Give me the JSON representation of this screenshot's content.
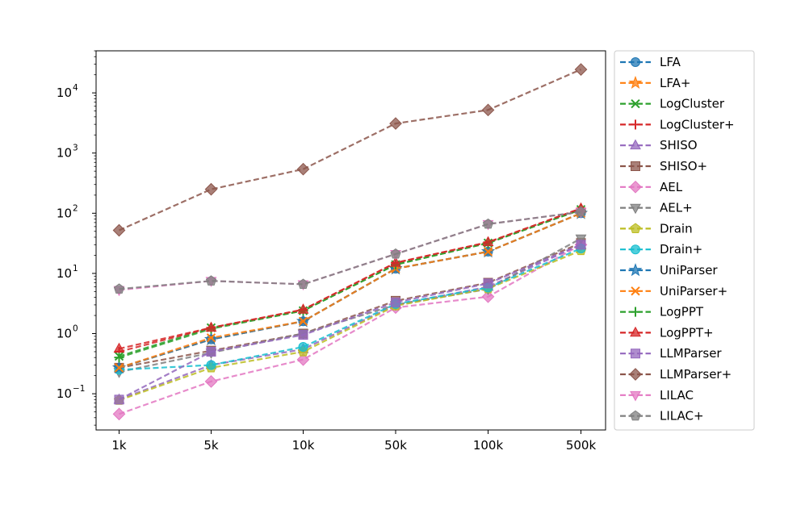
{
  "chart_data": {
    "type": "line",
    "title": "",
    "xlabel": "",
    "ylabel": "",
    "y_scale": "log",
    "ylim": [
      0.025,
      50000
    ],
    "grid": false,
    "legend_position": "outside-right",
    "categories": [
      "1k",
      "5k",
      "10k",
      "50k",
      "100k",
      "500k"
    ],
    "y_tick_labels": [
      "10",
      "10",
      "10",
      "10",
      "10",
      "10"
    ],
    "y_tick_exponents": [
      "−1",
      "0",
      "1",
      "2",
      "3",
      "4"
    ],
    "y_tick_values": [
      0.1,
      1,
      10,
      100,
      1000,
      10000
    ],
    "series": [
      {
        "name": "LFA",
        "color": "#1f77b4",
        "marker": "circle",
        "values": [
          0.27,
          0.8,
          1.6,
          12,
          23,
          100
        ]
      },
      {
        "name": "LFA+",
        "color": "#ff7f0e",
        "marker": "star",
        "values": [
          0.27,
          0.8,
          1.6,
          12,
          23,
          100
        ]
      },
      {
        "name": "LogCluster",
        "color": "#2ca02c",
        "marker": "x",
        "values": [
          0.42,
          1.25,
          2.4,
          14,
          32,
          115
        ]
      },
      {
        "name": "LogCluster+",
        "color": "#d62728",
        "marker": "plus",
        "values": [
          0.5,
          1.25,
          2.5,
          15,
          33,
          120
        ]
      },
      {
        "name": "SHISO",
        "color": "#9467bd",
        "marker": "triangle-up",
        "values": [
          0.08,
          0.3,
          0.55,
          3.0,
          6.0,
          30
        ]
      },
      {
        "name": "SHISO+",
        "color": "#8c564b",
        "marker": "square",
        "values": [
          0.27,
          0.52,
          1.0,
          3.5,
          7.0,
          32
        ]
      },
      {
        "name": "AEL",
        "color": "#e377c2",
        "marker": "diamond",
        "values": [
          0.046,
          0.16,
          0.37,
          2.7,
          4.1,
          30
        ]
      },
      {
        "name": "AEL+",
        "color": "#7f7f7f",
        "marker": "triangle-down",
        "values": [
          0.23,
          0.48,
          1.0,
          3.0,
          5.5,
          38
        ]
      },
      {
        "name": "Drain",
        "color": "#bcbd22",
        "marker": "pentagon",
        "values": [
          0.078,
          0.27,
          0.5,
          2.9,
          5.6,
          24
        ]
      },
      {
        "name": "Drain+",
        "color": "#17becf",
        "marker": "circle",
        "values": [
          0.25,
          0.3,
          0.6,
          3.1,
          5.8,
          26
        ]
      },
      {
        "name": "UniParser",
        "color": "#1f77b4",
        "marker": "star",
        "values": [
          0.27,
          0.8,
          1.6,
          12,
          23,
          100
        ]
      },
      {
        "name": "UniParser+",
        "color": "#ff7f0e",
        "marker": "x",
        "values": [
          0.27,
          0.85,
          1.6,
          12,
          23,
          100
        ]
      },
      {
        "name": "LogPPT",
        "color": "#2ca02c",
        "marker": "plus",
        "values": [
          0.4,
          1.2,
          2.4,
          14,
          32,
          115
        ]
      },
      {
        "name": "LogPPT+",
        "color": "#d62728",
        "marker": "triangle-up",
        "values": [
          0.56,
          1.25,
          2.5,
          15,
          33,
          120
        ]
      },
      {
        "name": "LLMParser",
        "color": "#9467bd",
        "marker": "square",
        "values": [
          0.08,
          0.5,
          0.95,
          3.3,
          6.8,
          30
        ]
      },
      {
        "name": "LLMParser+",
        "color": "#8c564b",
        "marker": "diamond",
        "values": [
          52,
          250,
          540,
          3100,
          5200,
          24500
        ]
      },
      {
        "name": "LILAC",
        "color": "#e377c2",
        "marker": "triangle-down",
        "values": [
          5.3,
          7.5,
          6.6,
          21,
          66,
          105
        ]
      },
      {
        "name": "LILAC+",
        "color": "#7f7f7f",
        "marker": "pentagon",
        "values": [
          5.5,
          7.5,
          6.6,
          21,
          66,
          105
        ]
      }
    ]
  }
}
